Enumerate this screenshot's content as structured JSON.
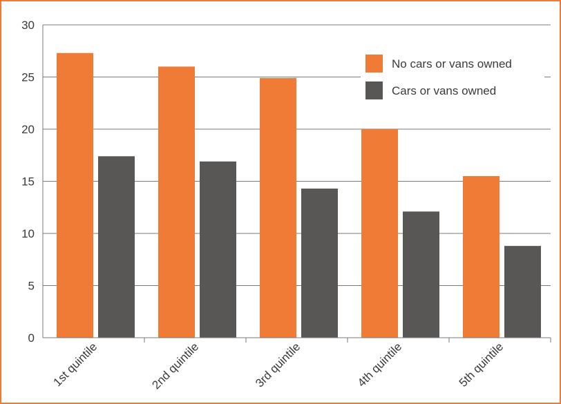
{
  "chart_data": {
    "type": "bar",
    "categories": [
      "1st quintile",
      "2nd quintile",
      "3rd quintile",
      "4th quintile",
      "5th quintile"
    ],
    "series": [
      {
        "name": "No cars or vans owned",
        "color": "#f07b36",
        "values": [
          27.3,
          26.0,
          24.9,
          20.0,
          15.5
        ]
      },
      {
        "name": "Cars or vans owned",
        "color": "#595755",
        "values": [
          17.4,
          16.9,
          14.3,
          12.1,
          8.8
        ]
      }
    ],
    "ylim": [
      0,
      30
    ],
    "yticks": [
      "0",
      "5",
      "10",
      "15",
      "20",
      "25",
      "30"
    ],
    "grid": true,
    "legend_position": "top-right",
    "title": "",
    "xlabel": "",
    "ylabel": ""
  }
}
